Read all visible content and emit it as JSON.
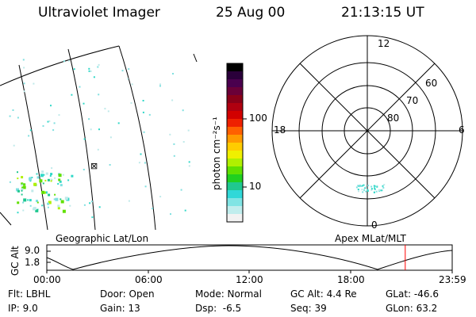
{
  "header": {
    "instrument": "Ultraviolet Imager",
    "date": "25 Aug 00",
    "time": "21:13:15 UT"
  },
  "geo_panel": {
    "label": "Geographic Lat/Lon",
    "marker_symbol": "⊠"
  },
  "colorbar": {
    "unit_label": "photon cm⁻²s⁻¹",
    "ticks": [
      "100",
      "10"
    ],
    "colors": [
      "#000000",
      "#2a003a",
      "#4a004e",
      "#6a0038",
      "#8a0018",
      "#b00010",
      "#d20000",
      "#ee2000",
      "#ff6000",
      "#ff9a00",
      "#ffcc00",
      "#f0f000",
      "#b0f000",
      "#60e000",
      "#20d020",
      "#20c890",
      "#30d8d8",
      "#80e4e4",
      "#c0eded",
      "#f2f2f2"
    ]
  },
  "polar_panel": {
    "label": "Apex MLat/MLT",
    "mlt_labels": {
      "top": "12",
      "left": "18",
      "right": "6",
      "bottom": "0"
    },
    "lat_labels": [
      "60",
      "70",
      "80"
    ]
  },
  "orbit_plot": {
    "ylabel": "GC Alt",
    "yticks": [
      "9.0",
      "1.8"
    ],
    "xticks": [
      "00:00",
      "06:00",
      "12:00",
      "18:00",
      "23:59"
    ],
    "current_time_hours": 21.22,
    "marker_color": "#ff0000"
  },
  "info": {
    "filter": "Flt: LBHL",
    "door": "Door: Open",
    "mode": "Mode: Normal",
    "gc_alt": "GC Alt: 4.4 Re",
    "glat": "GLat: -46.6",
    "ip": "IP: 9.0",
    "gain": "Gain: 13",
    "dsp": "Dsp:  -6.5",
    "seq": "Seq: 39",
    "glon": "GLon: 63.2"
  }
}
